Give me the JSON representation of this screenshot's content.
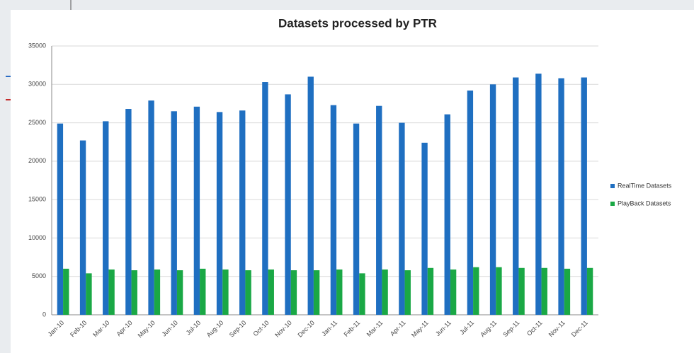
{
  "chart_data": {
    "type": "bar",
    "title": "Datasets processed by PTR",
    "categories": [
      "Jan-10",
      "Feb-10",
      "Mar-10",
      "Apr-10",
      "May-10",
      "Jun-10",
      "Jul-10",
      "Aug-10",
      "Sep-10",
      "Oct-10",
      "Nov-10",
      "Dec-10",
      "Jan-11",
      "Feb-11",
      "Mar-11",
      "Apr-11",
      "May-11",
      "Jun-11",
      "Jul-11",
      "Aug-11",
      "Sep-11",
      "Oct-11",
      "Nov-11",
      "Dec-11"
    ],
    "series": [
      {
        "name": "RealTime Datasets",
        "color": "#1f6fc1",
        "values": [
          24900,
          22700,
          25200,
          26800,
          27900,
          26500,
          27100,
          26400,
          26600,
          30300,
          28700,
          31000,
          27300,
          24900,
          27200,
          25000,
          22400,
          26100,
          29200,
          30000,
          30900,
          31400,
          30800,
          30900
        ]
      },
      {
        "name": "PlayBack Datasets",
        "color": "#1aa845",
        "values": [
          6000,
          5400,
          5900,
          5800,
          5900,
          5800,
          6000,
          5900,
          5800,
          5900,
          5800,
          5800,
          5900,
          5400,
          5900,
          5800,
          6100,
          5900,
          6200,
          6200,
          6100,
          6100,
          6000,
          6100
        ]
      }
    ],
    "ylim": [
      0,
      35000
    ],
    "yticks": [
      0,
      5000,
      10000,
      15000,
      20000,
      25000,
      30000,
      35000
    ],
    "grid": true,
    "legend": "right"
  }
}
